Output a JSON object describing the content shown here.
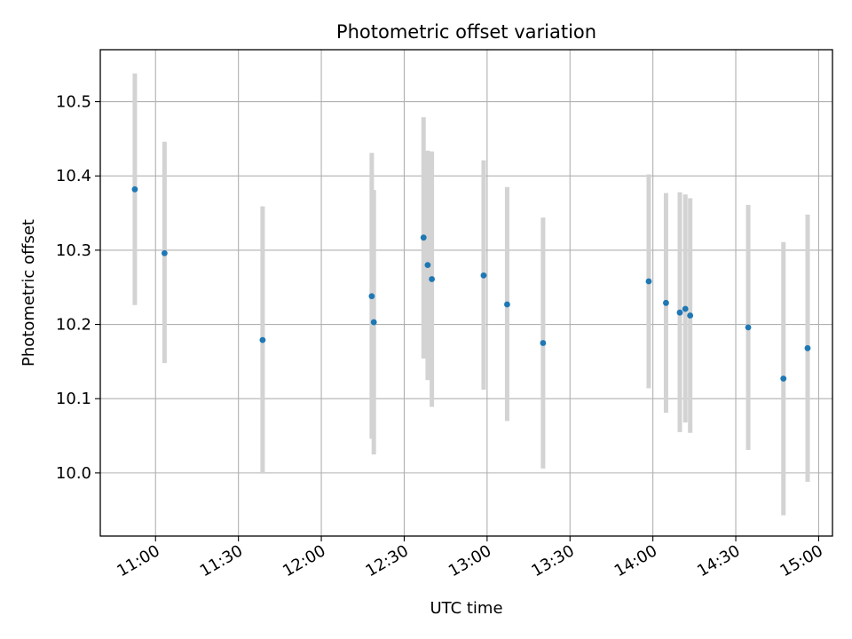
{
  "chart_data": {
    "type": "scatter",
    "title": "Photometric offset variation",
    "xlabel": "UTC time",
    "ylabel": "Photometric offset",
    "grid": true,
    "xlim": [
      "10:40",
      "15:05"
    ],
    "ylim": [
      9.915,
      10.57
    ],
    "xticks": [
      "11:00",
      "11:30",
      "12:00",
      "12:30",
      "13:00",
      "13:30",
      "14:00",
      "14:30",
      "15:00"
    ],
    "yticks": [
      "10.0",
      "10.1",
      "10.2",
      "10.3",
      "10.4",
      "10.5"
    ],
    "colors": {
      "point": "#1f77b4",
      "errorbar": "#d3d3d3",
      "grid": "#b0b0b0"
    },
    "points": [
      {
        "x": "10:52:30",
        "y": 10.382,
        "err_low": 10.226,
        "err_high": 10.538
      },
      {
        "x": "11:03:15",
        "y": 10.296,
        "err_low": 10.148,
        "err_high": 10.446
      },
      {
        "x": "11:38:45",
        "y": 10.179,
        "err_low": 9.999,
        "err_high": 10.359
      },
      {
        "x": "12:18:15",
        "y": 10.238,
        "err_low": 10.046,
        "err_high": 10.431
      },
      {
        "x": "12:19:00",
        "y": 10.203,
        "err_low": 10.025,
        "err_high": 10.381
      },
      {
        "x": "12:37:00",
        "y": 10.317,
        "err_low": 10.154,
        "err_high": 10.479
      },
      {
        "x": "12:38:30",
        "y": 10.28,
        "err_low": 10.125,
        "err_high": 10.434
      },
      {
        "x": "12:40:00",
        "y": 10.261,
        "err_low": 10.089,
        "err_high": 10.433
      },
      {
        "x": "12:58:45",
        "y": 10.266,
        "err_low": 10.112,
        "err_high": 10.421
      },
      {
        "x": "13:07:15",
        "y": 10.227,
        "err_low": 10.07,
        "err_high": 10.385
      },
      {
        "x": "13:20:15",
        "y": 10.175,
        "err_low": 10.006,
        "err_high": 10.344
      },
      {
        "x": "13:58:30",
        "y": 10.258,
        "err_low": 10.114,
        "err_high": 10.402
      },
      {
        "x": "14:04:45",
        "y": 10.229,
        "err_low": 10.081,
        "err_high": 10.377
      },
      {
        "x": "14:09:45",
        "y": 10.216,
        "err_low": 10.055,
        "err_high": 10.378
      },
      {
        "x": "14:11:45",
        "y": 10.221,
        "err_low": 10.068,
        "err_high": 10.375
      },
      {
        "x": "14:13:30",
        "y": 10.212,
        "err_low": 10.054,
        "err_high": 10.37
      },
      {
        "x": "14:34:30",
        "y": 10.196,
        "err_low": 10.031,
        "err_high": 10.361
      },
      {
        "x": "14:47:15",
        "y": 10.127,
        "err_low": 9.943,
        "err_high": 10.311
      },
      {
        "x": "14:56:00",
        "y": 10.168,
        "err_low": 9.988,
        "err_high": 10.348
      }
    ]
  }
}
